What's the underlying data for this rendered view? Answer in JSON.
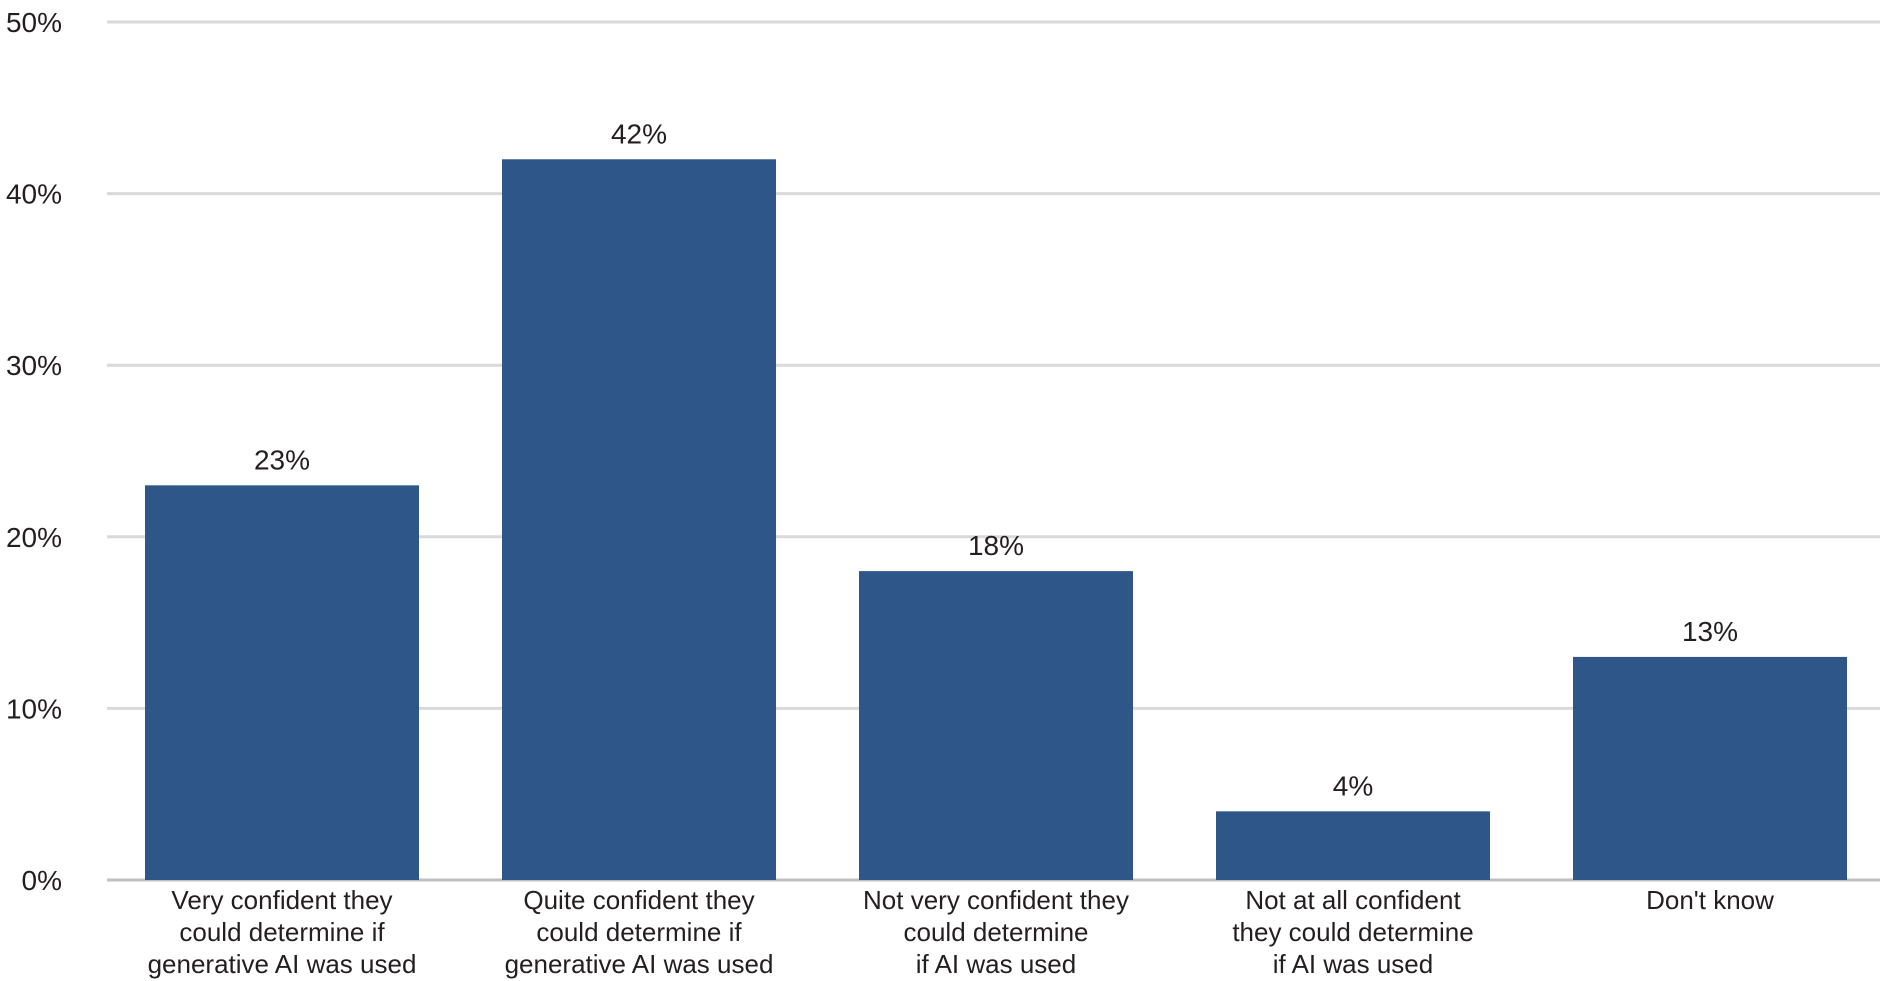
{
  "chart_data": {
    "type": "bar",
    "categories": [
      [
        "Very confident they",
        "could determine if",
        "generative AI was used"
      ],
      [
        "Quite confident they",
        "could determine if",
        "generative AI was used"
      ],
      [
        "Not very confident they",
        "could determine",
        "if AI was used"
      ],
      [
        "Not at all confident",
        "they could determine",
        "if AI was used"
      ],
      [
        "Don't know"
      ]
    ],
    "values": [
      23,
      42,
      18,
      4,
      13
    ],
    "value_labels": [
      "23%",
      "42%",
      "18%",
      "4%",
      "13%"
    ],
    "y_ticks": [
      "0%",
      "10%",
      "20%",
      "30%",
      "40%",
      "50%"
    ],
    "y_tick_values": [
      0,
      10,
      20,
      30,
      40,
      50
    ],
    "ylim": [
      0,
      50
    ],
    "grid": true,
    "legend": "none",
    "colors": {
      "bar": "#2e5689",
      "grid": "#d9d9d9",
      "axis": "#bfbfbf",
      "text": "#231f20"
    }
  }
}
